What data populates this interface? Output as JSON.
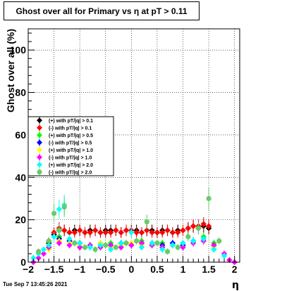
{
  "chart_data": {
    "type": "scatter",
    "title": "Ghost over all for Primary vs   η at pT > 0.11",
    "xlabel": "η",
    "ylabel": "Ghost over all (%)",
    "xlim": [
      -2.0,
      2.1
    ],
    "ylim": [
      0,
      110
    ],
    "xticks": [
      -2,
      -1.5,
      -1,
      -0.5,
      0,
      0.5,
      1,
      1.5,
      2
    ],
    "xtick_labels": [
      "−2",
      "−1.5",
      "−1",
      "−0.5",
      "0",
      "0.5",
      "1",
      "1.5",
      "2"
    ],
    "yticks": [
      0,
      20,
      40,
      60,
      80,
      100
    ],
    "ytick_labels": [
      "0",
      "20",
      "40",
      "60",
      "80",
      "100"
    ],
    "grid": true,
    "legend_position": "middle-left",
    "series": [
      {
        "name": "(+) with pT/|q| > 0.1",
        "color": "#000000",
        "shape": "diamond",
        "x": [
          -1.6,
          -1.5,
          -1.4,
          -1.3,
          -1.2,
          -1.1,
          -1.0,
          -0.9,
          -0.8,
          -0.7,
          -0.6,
          -0.5,
          -0.4,
          -0.3,
          -0.2,
          -0.1,
          0.0,
          0.1,
          0.2,
          0.3,
          0.4,
          0.5,
          0.6,
          0.7,
          0.8,
          0.9,
          1.0,
          1.1,
          1.2,
          1.3,
          1.4,
          1.5
        ],
        "y": [
          9,
          13,
          15,
          15,
          14,
          15,
          15,
          14,
          15,
          15,
          14,
          15,
          15,
          15,
          14,
          15,
          15,
          15,
          14,
          15,
          15,
          14,
          15,
          15,
          14,
          15,
          15,
          16,
          17,
          16,
          17,
          16
        ]
      },
      {
        "name": "(-) with pT/|q| > 0.1",
        "color": "#ff0000",
        "shape": "diamond",
        "x": [
          -1.6,
          -1.5,
          -1.4,
          -1.3,
          -1.2,
          -1.1,
          -1.0,
          -0.9,
          -0.8,
          -0.7,
          -0.6,
          -0.5,
          -0.4,
          -0.3,
          -0.2,
          -0.1,
          0.0,
          0.1,
          0.2,
          0.3,
          0.4,
          0.5,
          0.6,
          0.7,
          0.8,
          0.9,
          1.0,
          1.1,
          1.2,
          1.3,
          1.4,
          1.5
        ],
        "y": [
          10,
          14,
          16,
          15,
          14,
          14,
          15,
          14,
          14,
          15,
          14,
          14,
          14,
          15,
          14,
          15,
          15,
          14,
          14,
          15,
          14,
          14,
          14,
          15,
          14,
          14,
          15,
          16,
          17,
          17,
          18,
          17
        ]
      },
      {
        "name": "(+) with pT/|q| > 0.5",
        "color": "#00ff00",
        "shape": "diamond",
        "x": [
          -1.6,
          -1.4,
          -1.2,
          -1.0,
          -0.8,
          -0.6,
          -0.4,
          -0.2,
          0.0,
          0.2,
          0.4,
          0.6,
          0.8,
          1.0,
          1.2,
          1.4,
          1.6
        ],
        "y": [
          8,
          12,
          10,
          9,
          8,
          8,
          9,
          8,
          9,
          10,
          8,
          9,
          8,
          9,
          10,
          12,
          9
        ]
      },
      {
        "name": "(-) with pT/|q| > 0.5",
        "color": "#0000ff",
        "shape": "diamond",
        "x": [
          -1.6,
          -1.4,
          -1.2,
          -1.0,
          -0.8,
          -0.6,
          -0.4,
          -0.2,
          0.0,
          0.2,
          0.4,
          0.6,
          0.8,
          1.0,
          1.2,
          1.4,
          1.6
        ],
        "y": [
          7,
          11,
          10,
          9,
          8,
          9,
          8,
          9,
          8,
          9,
          9,
          8,
          9,
          8,
          10,
          11,
          8
        ]
      },
      {
        "name": "(+) with pT/|q| > 1.0",
        "color": "#ffff00",
        "shape": "diamond",
        "x": [
          -1.6,
          -1.4,
          -1.2,
          -1.0,
          -0.8,
          -0.6,
          -0.4,
          -0.2,
          0.0,
          0.2,
          0.4,
          0.6,
          0.8,
          1.0,
          1.2,
          1.4,
          1.6
        ],
        "y": [
          6,
          10,
          9,
          8,
          8,
          9,
          7,
          8,
          9,
          8,
          9,
          7,
          8,
          9,
          9,
          10,
          7
        ]
      },
      {
        "name": "(-) with pT/|q| > 1.0",
        "color": "#ff00ff",
        "shape": "diamond",
        "x": [
          -1.9,
          -1.8,
          -1.7,
          -1.6,
          -1.4,
          -1.2,
          -1.0,
          -0.8,
          -0.6,
          -0.4,
          -0.2,
          0.0,
          0.2,
          0.4,
          0.6,
          0.8,
          1.0,
          1.2,
          1.4,
          1.6,
          1.8,
          1.9,
          2.0
        ],
        "y": [
          0,
          2,
          4,
          7,
          9,
          8,
          7,
          8,
          7,
          8,
          7,
          8,
          9,
          8,
          7,
          8,
          7,
          9,
          10,
          8,
          4,
          1,
          0
        ]
      },
      {
        "name": "(+) with pT/|q| > 2.0",
        "color": "#00ffff",
        "shape": "diamond",
        "x": [
          -1.9,
          -1.8,
          -1.7,
          -1.6,
          -1.5,
          -1.4,
          -1.3,
          -1.2,
          -1.0,
          -0.8,
          -0.6,
          -0.4,
          -0.2,
          0.0,
          0.2,
          0.4,
          0.6,
          0.8,
          1.0,
          1.2,
          1.4,
          1.6,
          1.8
        ],
        "y": [
          2,
          4,
          6,
          8,
          12,
          25,
          27,
          11,
          9,
          7,
          8,
          6,
          9,
          14,
          7,
          9,
          6,
          8,
          9,
          10,
          11,
          6,
          3
        ]
      },
      {
        "name": "(-) with pT/|q| > 2.0",
        "color": "#66cc66",
        "shape": "circle",
        "x": [
          -1.8,
          -1.6,
          -1.5,
          -1.4,
          -1.3,
          -1.1,
          -0.9,
          -0.7,
          -0.5,
          -0.3,
          -0.1,
          0.1,
          0.3,
          0.5,
          0.7,
          0.9,
          1.1,
          1.3,
          1.5,
          1.7
        ],
        "y": [
          5,
          10,
          23,
          15,
          26,
          9,
          7,
          6,
          8,
          7,
          9,
          10,
          19,
          9,
          5,
          7,
          12,
          16,
          30,
          10
        ]
      }
    ]
  },
  "timestamp": "Tue Sep  7 13:45:26 2021"
}
